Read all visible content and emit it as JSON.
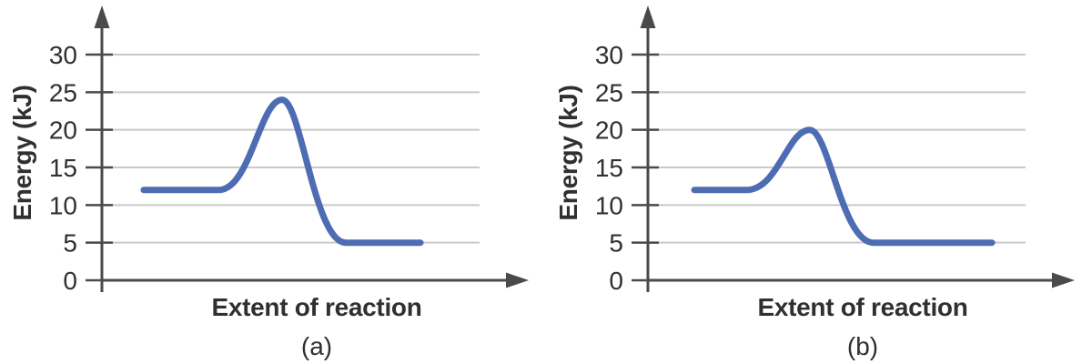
{
  "figure": {
    "background": "#ffffff"
  },
  "colors": {
    "curve": "#4d6cb3",
    "axis": "#4a4a4a",
    "grid": "#c9c9c9",
    "text": "#303030"
  },
  "chart_data": [
    {
      "type": "line",
      "caption": "(a)",
      "xlabel": "Extent of reaction",
      "ylabel": "Energy (kJ)",
      "yticks": [
        0,
        5,
        10,
        15,
        20,
        25,
        30
      ],
      "ylim": [
        0,
        34
      ],
      "grid": "horizontal-light",
      "legend": "none",
      "series": [
        {
          "name": "energy-profile",
          "reactant_energy_kj": 12,
          "peak_energy_kj": 24,
          "product_energy_kj": 5,
          "x_fracs": {
            "curve_start": 0.098,
            "rise_begin": 0.274,
            "peak": 0.423,
            "fall_end": 0.573,
            "curve_end": 0.748
          }
        }
      ]
    },
    {
      "type": "line",
      "caption": "(b)",
      "xlabel": "Extent of reaction",
      "ylabel": "Energy (kJ)",
      "yticks": [
        0,
        5,
        10,
        15,
        20,
        25,
        30
      ],
      "ylim": [
        0,
        34
      ],
      "grid": "horizontal-light",
      "legend": "none",
      "series": [
        {
          "name": "energy-profile",
          "reactant_energy_kj": 12,
          "peak_energy_kj": 20,
          "product_energy_kj": 5,
          "x_fracs": {
            "curve_start": 0.109,
            "rise_begin": 0.231,
            "peak": 0.38,
            "fall_end": 0.53,
            "curve_end": 0.808
          }
        }
      ]
    }
  ]
}
